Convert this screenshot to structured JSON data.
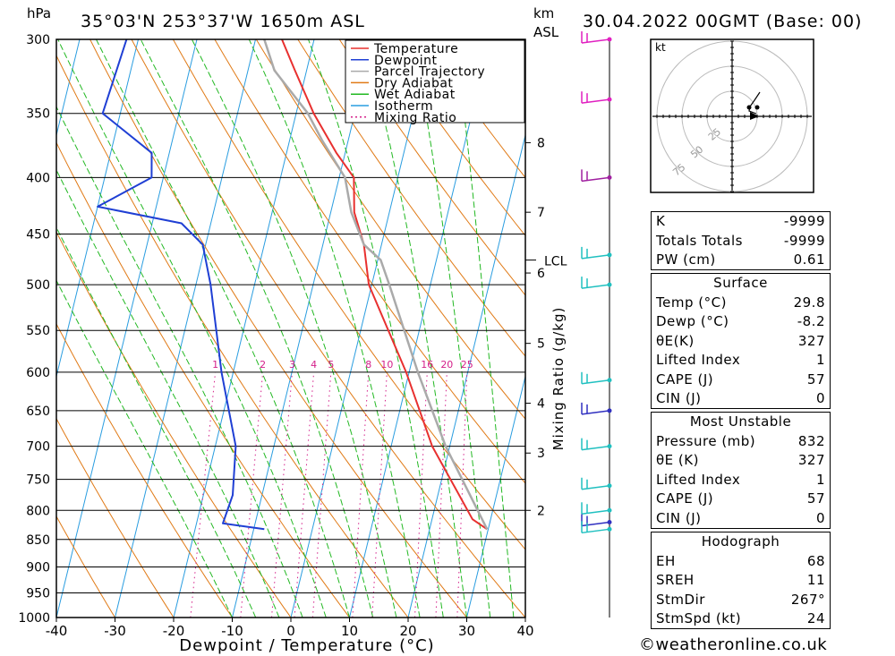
{
  "header": {
    "pressure_unit": "hPa",
    "location": "35°03'N  253°37'W  1650m  ASL",
    "height_unit_top": "km",
    "height_unit_bottom": "ASL",
    "datetime": "30.04.2022  00GMT  (Base: 00)"
  },
  "chart_data": {
    "type": "skew-t",
    "xlabel": "Dewpoint / Temperature (°C)",
    "mixing_ratio_label": "Mixing Ratio (g/kg)",
    "x_ticks": [
      -40,
      -30,
      -20,
      -10,
      0,
      10,
      20,
      30,
      40
    ],
    "pressure_levels": [
      300,
      350,
      400,
      450,
      500,
      550,
      600,
      650,
      700,
      750,
      800,
      850,
      900,
      950,
      1000
    ],
    "km_ticks": [
      {
        "label": "2",
        "p": 800
      },
      {
        "label": "3",
        "p": 710
      },
      {
        "label": "4",
        "p": 640
      },
      {
        "label": "5",
        "p": 565
      },
      {
        "label": "6",
        "p": 488
      },
      {
        "label": "7",
        "p": 430
      },
      {
        "label": "8",
        "p": 372
      }
    ],
    "lcl": {
      "label": "LCL",
      "p": 475
    },
    "mixing_ratio_values": [
      "1",
      "2",
      "3",
      "4",
      "5",
      "8",
      "10",
      "16",
      "20",
      "25"
    ],
    "legend": [
      {
        "name": "Temperature",
        "color": "#e8302f",
        "dash": false
      },
      {
        "name": "Dewpoint",
        "color": "#1f3fd4",
        "dash": false
      },
      {
        "name": "Parcel Trajectory",
        "color": "#aaaaaa",
        "dash": false
      },
      {
        "name": "Dry Adiabat",
        "color": "#e07a16",
        "dash": false
      },
      {
        "name": "Wet Adiabat",
        "color": "#22b822",
        "dash": false
      },
      {
        "name": "Isotherm",
        "color": "#2a9de0",
        "dash": false
      },
      {
        "name": "Mixing Ratio",
        "color": "#d4208a",
        "dash": true
      }
    ],
    "series": [
      {
        "key": "temperature",
        "color": "#e8302f",
        "points": [
          [
            832,
            29.8
          ],
          [
            815,
            26.9
          ],
          [
            700,
            17
          ],
          [
            600,
            9.5
          ],
          [
            500,
            -0.5
          ],
          [
            460,
            -3
          ],
          [
            430,
            -6
          ],
          [
            400,
            -7.5
          ],
          [
            380,
            -11.5
          ],
          [
            350,
            -17
          ],
          [
            320,
            -22
          ],
          [
            300,
            -25.5
          ]
        ]
      },
      {
        "key": "dewpoint",
        "color": "#1f3fd4",
        "points": [
          [
            832,
            -8.2
          ],
          [
            822,
            -15.5
          ],
          [
            775,
            -15
          ],
          [
            700,
            -16.5
          ],
          [
            600,
            -22
          ],
          [
            500,
            -27.5
          ],
          [
            460,
            -30.5
          ],
          [
            440,
            -35
          ],
          [
            425,
            -50
          ],
          [
            400,
            -42
          ],
          [
            380,
            -43
          ],
          [
            350,
            -53
          ],
          [
            300,
            -52
          ]
        ]
      },
      {
        "key": "parcel",
        "color": "#aaaaaa",
        "points": [
          [
            832,
            29.8
          ],
          [
            700,
            19.3
          ],
          [
            600,
            11.5
          ],
          [
            500,
            3
          ],
          [
            475,
            0.5
          ],
          [
            460,
            -3
          ],
          [
            430,
            -6.5
          ],
          [
            400,
            -9
          ],
          [
            370,
            -14.5
          ],
          [
            350,
            -18
          ],
          [
            320,
            -25.5
          ],
          [
            300,
            -28.5
          ]
        ]
      }
    ],
    "wind_barbs": [
      {
        "p": 300,
        "color": "#e020c0"
      },
      {
        "p": 340,
        "color": "#e020c0"
      },
      {
        "p": 400,
        "color": "#a020a0"
      },
      {
        "p": 470,
        "color": "#20c0c0"
      },
      {
        "p": 500,
        "color": "#20c0c0"
      },
      {
        "p": 610,
        "color": "#20c0c0"
      },
      {
        "p": 650,
        "color": "#3030c0"
      },
      {
        "p": 700,
        "color": "#20c0c0"
      },
      {
        "p": 760,
        "color": "#20c0c0"
      },
      {
        "p": 800,
        "color": "#20c0c0"
      },
      {
        "p": 820,
        "color": "#3030c0"
      },
      {
        "p": 832,
        "color": "#20c0c0"
      }
    ],
    "hodograph": {
      "unit": "kt",
      "ring_labels": [
        "25",
        "50",
        "75"
      ]
    }
  },
  "indices": {
    "k_label": "K",
    "k": "-9999",
    "tt_label": "Totals Totals",
    "tt": "-9999",
    "pw_label": "PW (cm)",
    "pw": "0.61"
  },
  "surface": {
    "title": "Surface",
    "rows": [
      {
        "label": "Temp (°C)",
        "value": "29.8"
      },
      {
        "label": "Dewp (°C)",
        "value": "-8.2"
      },
      {
        "label": "θE(K)",
        "value": "327"
      },
      {
        "label": "Lifted Index",
        "value": "1"
      },
      {
        "label": "CAPE (J)",
        "value": "57"
      },
      {
        "label": "CIN (J)",
        "value": "0"
      }
    ]
  },
  "most_unstable": {
    "title": "Most Unstable",
    "rows": [
      {
        "label": "Pressure (mb)",
        "value": "832"
      },
      {
        "label": "θE (K)",
        "value": "327"
      },
      {
        "label": "Lifted Index",
        "value": "1"
      },
      {
        "label": "CAPE (J)",
        "value": "57"
      },
      {
        "label": "CIN (J)",
        "value": "0"
      }
    ]
  },
  "hodograph_box": {
    "title": "Hodograph",
    "rows": [
      {
        "label": "EH",
        "value": "68"
      },
      {
        "label": "SREH",
        "value": "11"
      },
      {
        "label": "StmDir",
        "value": "267°"
      },
      {
        "label": "StmSpd (kt)",
        "value": "24"
      }
    ]
  },
  "footer": {
    "copyright": "©weatheronline.co.uk"
  }
}
